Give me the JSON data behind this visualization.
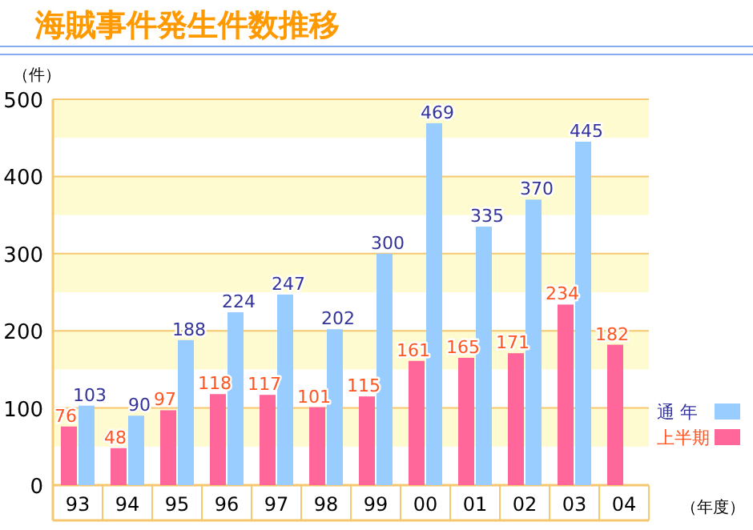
{
  "chart_data": {
    "type": "bar",
    "title": "海賊事件発生件数推移",
    "ylabel": "（件）",
    "xlabel": "（年度）",
    "categories": [
      "93",
      "94",
      "95",
      "96",
      "97",
      "98",
      "99",
      "00",
      "01",
      "02",
      "03",
      "04"
    ],
    "series": [
      {
        "name": "上半期",
        "color": "#ff6699",
        "values": [
          76,
          48,
          97,
          118,
          117,
          101,
          115,
          161,
          165,
          171,
          234,
          182
        ]
      },
      {
        "name": "通 年",
        "color": "#99ccff",
        "values": [
          103,
          90,
          188,
          224,
          247,
          202,
          300,
          469,
          335,
          370,
          445,
          null
        ]
      }
    ],
    "ylim": [
      0,
      500
    ],
    "yticks": [
      0,
      100,
      200,
      300,
      400,
      500
    ],
    "grid": "y",
    "bands": [
      {
        "axis": "y",
        "from": 50,
        "to": 100,
        "color": "#fffbd0"
      },
      {
        "axis": "y",
        "from": 150,
        "to": 200,
        "color": "#fffbd0"
      },
      {
        "axis": "y",
        "from": 250,
        "to": 300,
        "color": "#fffbd0"
      },
      {
        "axis": "y",
        "from": 350,
        "to": 400,
        "color": "#fffbd0"
      },
      {
        "axis": "y",
        "from": 450,
        "to": 500,
        "color": "#fffbd0"
      }
    ],
    "data_labels": true,
    "legend": "bottom right"
  }
}
